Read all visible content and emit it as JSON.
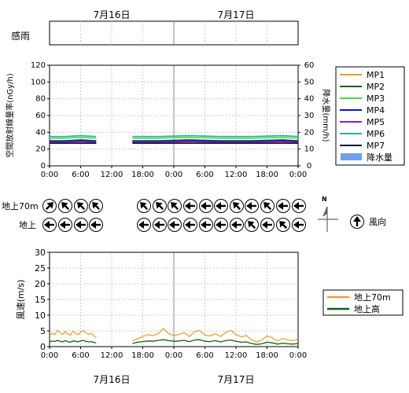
{
  "dates": {
    "d1": "7月16日",
    "d2": "7月17日"
  },
  "kanu": {
    "label": "感雨"
  },
  "rad_chart": {
    "left_axis_label": "空間放射線量率(nGy/h)",
    "right_axis_label": "降水量(mm/h)",
    "left_ticks": [
      "0",
      "20",
      "40",
      "60",
      "80",
      "100",
      "120"
    ],
    "right_ticks": [
      "0",
      "10",
      "20",
      "30",
      "40",
      "50",
      "60"
    ]
  },
  "time_ticks": [
    "0:00",
    "6:00",
    "12:00",
    "18:00",
    "0:00",
    "6:00",
    "12:00",
    "18:00",
    "0:00"
  ],
  "legend1": {
    "items": [
      "MP1",
      "MP2",
      "MP3",
      "MP4",
      "MP5",
      "MP6",
      "MP7",
      "降水量"
    ]
  },
  "wind_dir": {
    "row1_label": "地上70m",
    "row2_label": "地上",
    "north_label": "N",
    "legend_label": "風向"
  },
  "speed_chart": {
    "y_label": "風速(m/s)",
    "y_ticks": [
      "0",
      "5",
      "10",
      "15",
      "20",
      "25",
      "30"
    ]
  },
  "legend2": {
    "items": [
      "地上70m",
      "地上高"
    ]
  },
  "chart_data": [
    {
      "type": "line",
      "y_axis_label": "空間放射線量率(nGy/h)",
      "y2_axis_label": "降水量(mm/h)",
      "ylim": [
        0,
        120
      ],
      "y2lim": [
        0,
        60
      ],
      "x_range_hours": [
        0,
        48
      ],
      "x_ticks": [
        "0:00",
        "6:00",
        "12:00",
        "18:00",
        "0:00",
        "6:00",
        "12:00",
        "18:00",
        "0:00"
      ],
      "grid": true,
      "legend_placement": "right",
      "series": [
        {
          "name": "MP1",
          "color": "#e8a020",
          "segments": [
            {
              "x": [
                0,
                3,
                6,
                9
              ],
              "y": [
                27,
                27,
                28,
                27
              ]
            },
            {
              "x": [
                16,
                21,
                27,
                33,
                39,
                45,
                48
              ],
              "y": [
                27,
                27,
                28,
                27,
                27,
                28,
                27
              ]
            }
          ]
        },
        {
          "name": "MP2",
          "color": "#106010",
          "segments": [
            {
              "x": [
                0,
                3,
                6,
                9
              ],
              "y": [
                30,
                30,
                31,
                30
              ]
            },
            {
              "x": [
                16,
                21,
                27,
                33,
                39,
                45,
                48
              ],
              "y": [
                30,
                30,
                31,
                30,
                30,
                31,
                30
              ]
            }
          ]
        },
        {
          "name": "MP3",
          "color": "#40e040",
          "segments": [
            {
              "x": [
                0,
                3,
                6,
                9
              ],
              "y": [
                33,
                33,
                34,
                33
              ]
            },
            {
              "x": [
                16,
                21,
                27,
                33,
                39,
                45,
                48
              ],
              "y": [
                33,
                33,
                34,
                33,
                33,
                34,
                33
              ]
            }
          ]
        },
        {
          "name": "MP4",
          "color": "#1010d0",
          "segments": [
            {
              "x": [
                0,
                3,
                6,
                9
              ],
              "y": [
                29,
                29,
                30,
                29
              ]
            },
            {
              "x": [
                16,
                21,
                27,
                33,
                39,
                45,
                48
              ],
              "y": [
                29,
                29,
                30,
                29,
                29,
                30,
                29
              ]
            }
          ]
        },
        {
          "name": "MP5",
          "color": "#9020c0",
          "segments": [
            {
              "x": [
                0,
                3,
                6,
                9
              ],
              "y": [
                28,
                28,
                29,
                28
              ]
            },
            {
              "x": [
                16,
                21,
                27,
                33,
                39,
                45,
                48
              ],
              "y": [
                28,
                28,
                29,
                28,
                28,
                29,
                28
              ]
            }
          ]
        },
        {
          "name": "MP6",
          "color": "#20b0b0",
          "segments": [
            {
              "x": [
                0,
                3,
                6,
                9
              ],
              "y": [
                35,
                35,
                36,
                35
              ]
            },
            {
              "x": [
                16,
                21,
                27,
                33,
                39,
                45,
                48
              ],
              "y": [
                35,
                35,
                36,
                35,
                35,
                36,
                35
              ]
            }
          ]
        },
        {
          "name": "MP7",
          "color": "#101040",
          "segments": [
            {
              "x": [
                0,
                3,
                6,
                9
              ],
              "y": [
                27,
                27,
                27,
                27
              ]
            },
            {
              "x": [
                16,
                21,
                27,
                33,
                39,
                45,
                48
              ],
              "y": [
                27,
                27,
                27,
                27,
                27,
                27,
                27
              ]
            }
          ]
        }
      ],
      "rain": {
        "name": "降水量",
        "color": "#6fa0f0",
        "values": []
      }
    },
    {
      "type": "line",
      "y_axis_label": "風速(m/s)",
      "ylim": [
        0,
        30
      ],
      "x_range_hours": [
        0,
        48
      ],
      "x_ticks": [
        "0:00",
        "6:00",
        "12:00",
        "18:00",
        "0:00",
        "6:00",
        "12:00",
        "18:00",
        "0:00"
      ],
      "grid": true,
      "legend_placement": "right",
      "series": [
        {
          "name": "地上70m",
          "color": "#f0a030",
          "segments": [
            {
              "x": [
                0,
                0.5,
                1,
                1.5,
                2,
                2.5,
                3,
                3.5,
                4,
                4.5,
                5,
                5.5,
                6,
                6.5,
                7,
                7.5,
                8,
                8.5,
                9
              ],
              "y": [
                3.5,
                4.2,
                3.8,
                5.2,
                4.5,
                3.9,
                4.8,
                4.1,
                3.6,
                4.9,
                4.3,
                3.8,
                4.6,
                5.1,
                4.4,
                3.9,
                4.2,
                3.5,
                2.8
              ]
            },
            {
              "x": [
                16,
                17,
                18,
                19,
                20,
                21,
                22,
                23,
                24,
                25,
                26,
                27,
                28,
                29,
                30,
                31,
                32,
                33,
                34,
                35,
                36,
                37,
                38,
                39,
                40,
                41,
                42,
                43,
                44,
                45,
                46,
                47,
                48
              ],
              "y": [
                1.8,
                2.5,
                3.2,
                3.8,
                3.5,
                4.2,
                5.8,
                4.1,
                3.5,
                3.9,
                4.5,
                3.2,
                4.8,
                5.1,
                3.6,
                3.4,
                4.1,
                3.2,
                4.5,
                5.2,
                3.8,
                3.1,
                3.5,
                2.2,
                1.5,
                2.1,
                3.4,
                2.8,
                1.8,
                2.6,
                2.1,
                1.9,
                2.4
              ]
            }
          ]
        },
        {
          "name": "地上高",
          "color": "#106010",
          "segments": [
            {
              "x": [
                0,
                0.5,
                1,
                1.5,
                2,
                2.5,
                3,
                3.5,
                4,
                4.5,
                5,
                5.5,
                6,
                6.5,
                7,
                7.5,
                8,
                8.5,
                9
              ],
              "y": [
                1.5,
                1.8,
                1.6,
                2.0,
                1.7,
                1.5,
                1.9,
                1.6,
                1.4,
                1.8,
                1.7,
                1.5,
                1.8,
                2.0,
                1.7,
                1.5,
                1.6,
                1.4,
                1.2
              ]
            },
            {
              "x": [
                16,
                17,
                18,
                19,
                20,
                21,
                22,
                23,
                24,
                25,
                26,
                27,
                28,
                29,
                30,
                31,
                32,
                33,
                34,
                35,
                36,
                37,
                38,
                39,
                40,
                41,
                42,
                43,
                44,
                45,
                46,
                47,
                48
              ],
              "y": [
                1.0,
                1.4,
                1.6,
                1.8,
                1.7,
                2.0,
                2.2,
                1.9,
                1.7,
                1.8,
                2.0,
                1.6,
                2.1,
                2.2,
                1.7,
                1.6,
                1.9,
                1.5,
                1.9,
                2.1,
                1.7,
                1.4,
                1.5,
                1.0,
                0.7,
                0.9,
                1.4,
                1.2,
                0.8,
                1.1,
                0.9,
                0.8,
                1.0
              ]
            }
          ]
        }
      ]
    },
    {
      "type": "table",
      "name": "風向",
      "row_labels": [
        "地上70m",
        "地上"
      ],
      "blocks": [
        {
          "hours": [
            0,
            3,
            6,
            9
          ],
          "row1_deg": [
            45,
            315,
            315,
            315
          ],
          "row2_deg": [
            270,
            270,
            270,
            270
          ]
        },
        {
          "hours": [
            18,
            20,
            22,
            24,
            26,
            28,
            30,
            32,
            34,
            36,
            38,
            40,
            42,
            44,
            46
          ],
          "row1_deg": [
            315,
            315,
            315,
            270,
            270,
            270,
            315,
            270,
            315,
            270,
            270,
            90,
            0,
            0,
            270
          ],
          "row2_deg": [
            270,
            270,
            270,
            270,
            270,
            270,
            270,
            315,
            270,
            315,
            270,
            90,
            180,
            270,
            270
          ]
        }
      ]
    }
  ]
}
